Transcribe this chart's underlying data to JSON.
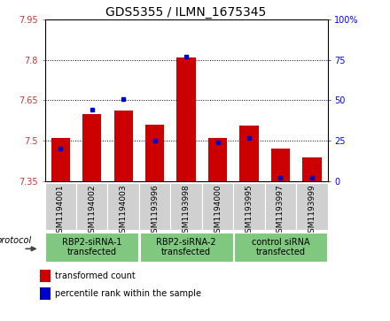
{
  "title": "GDS5355 / ILMN_1675345",
  "samples": [
    "GSM1194001",
    "GSM1194002",
    "GSM1194003",
    "GSM1193996",
    "GSM1193998",
    "GSM1194000",
    "GSM1193995",
    "GSM1193997",
    "GSM1193999"
  ],
  "red_values": [
    7.512,
    7.6,
    7.612,
    7.56,
    7.81,
    7.512,
    7.555,
    7.47,
    7.44
  ],
  "blue_values": [
    20,
    44,
    51,
    25,
    77,
    24,
    27,
    2,
    2
  ],
  "ymin": 7.35,
  "ymax": 7.95,
  "yticks": [
    7.35,
    7.5,
    7.65,
    7.8,
    7.95
  ],
  "y2min": 0,
  "y2max": 100,
  "y2ticks": [
    0,
    25,
    50,
    75,
    100
  ],
  "y2ticklabels": [
    "0",
    "25",
    "50",
    "75",
    "100%"
  ],
  "bar_color": "#CC0000",
  "dot_color": "#0000CC",
  "bar_width": 0.6,
  "group_boundaries": [
    0,
    3,
    6,
    9
  ],
  "group_labels": [
    "RBP2-siRNA-1\ntransfected",
    "RBP2-siRNA-2\ntransfected",
    "control siRNA\ntransfected"
  ],
  "green_color": "#80c880",
  "gray_color": "#d0d0d0",
  "legend_red": "transformed count",
  "legend_blue": "percentile rank within the sample",
  "protocol_label": "protocol",
  "title_fontsize": 10,
  "tick_fontsize": 7,
  "sample_fontsize": 6.5,
  "group_fontsize": 7,
  "legend_fontsize": 7
}
